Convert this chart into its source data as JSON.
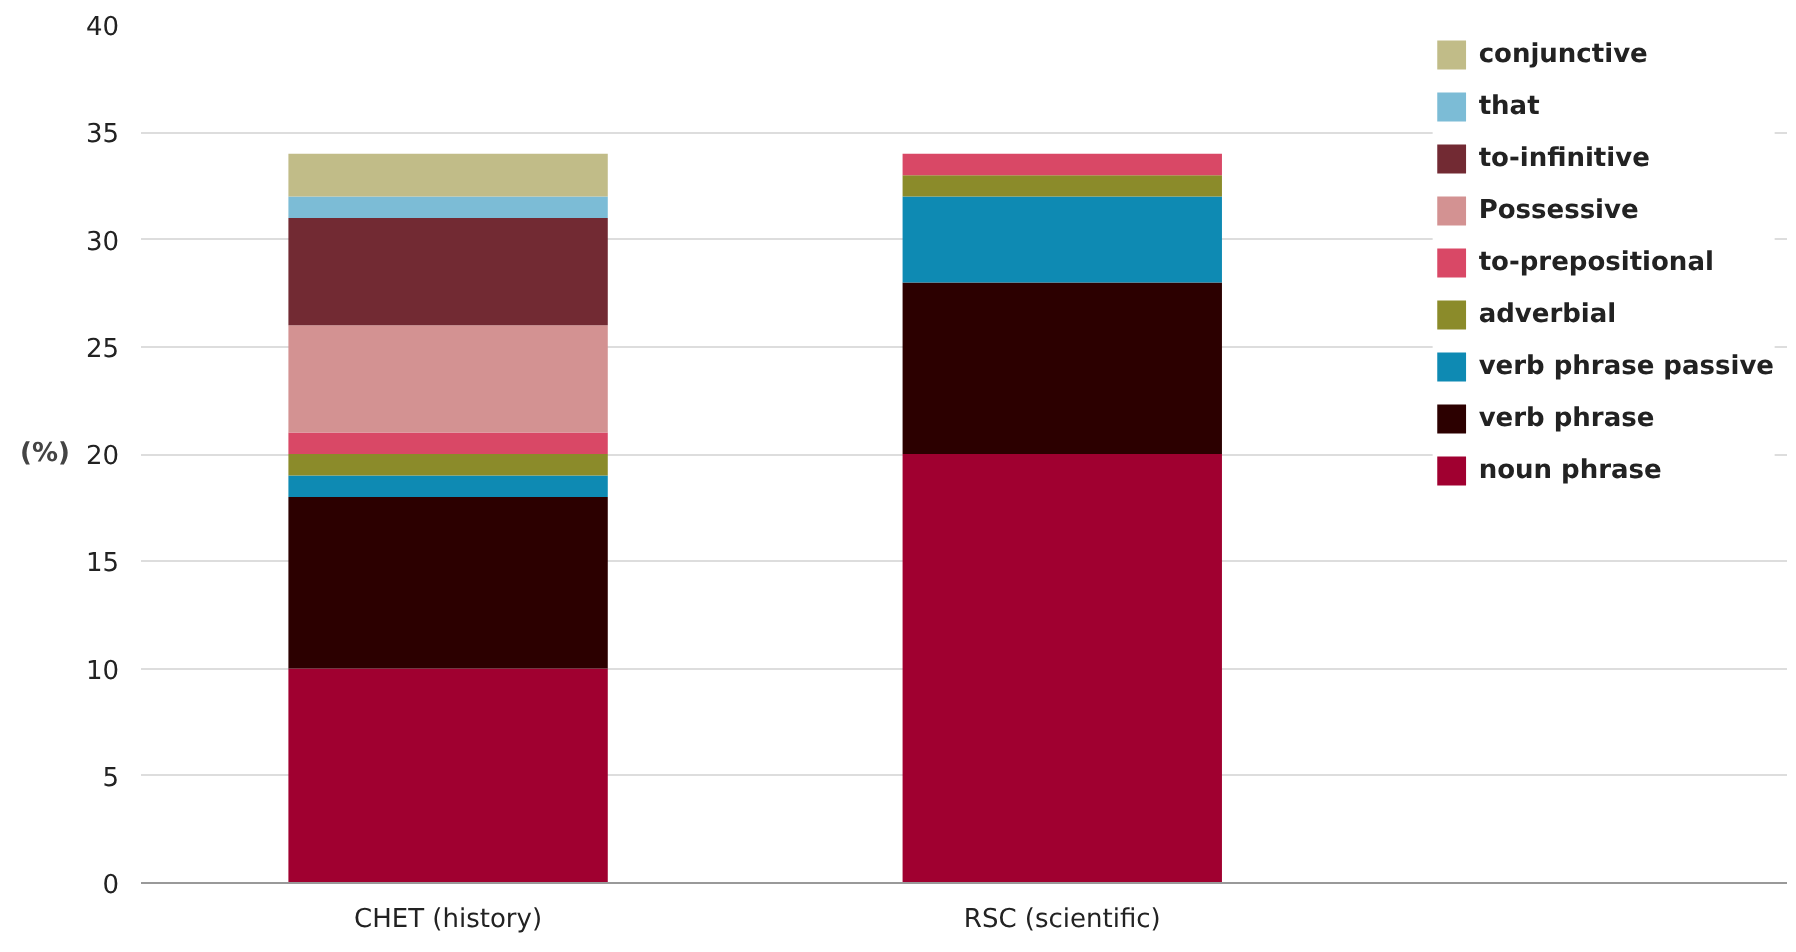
{
  "chart_data": {
    "type": "bar",
    "stacked": true,
    "ylabel": "(%)",
    "categories": [
      "CHET (history)",
      "RSC (scientific)"
    ],
    "ylim": [
      0,
      40
    ],
    "yticks": [
      0,
      5,
      10,
      15,
      20,
      25,
      30,
      35,
      40
    ],
    "grid": "y",
    "legend": "right",
    "series": [
      {
        "name": "noun phrase",
        "color": "#a00030",
        "values": [
          10,
          20
        ]
      },
      {
        "name": "verb phrase",
        "color": "#2c0000",
        "values": [
          8,
          8
        ]
      },
      {
        "name": "verb phrase passive",
        "color": "#0e8ab3",
        "values": [
          1,
          4
        ]
      },
      {
        "name": "adverbial",
        "color": "#8b8b2a",
        "values": [
          1,
          1
        ]
      },
      {
        "name": "to-prepositional",
        "color": "#d94866",
        "values": [
          1,
          1
        ]
      },
      {
        "name": "Possessive",
        "color": "#d39292",
        "values": [
          5,
          0
        ]
      },
      {
        "name": "to-infinitive",
        "color": "#722a33",
        "values": [
          5,
          0
        ]
      },
      {
        "name": "that",
        "color": "#7cbcd6",
        "values": [
          1,
          0
        ]
      },
      {
        "name": "conjunctive",
        "color": "#c1bc88",
        "values": [
          2,
          0
        ]
      }
    ]
  }
}
